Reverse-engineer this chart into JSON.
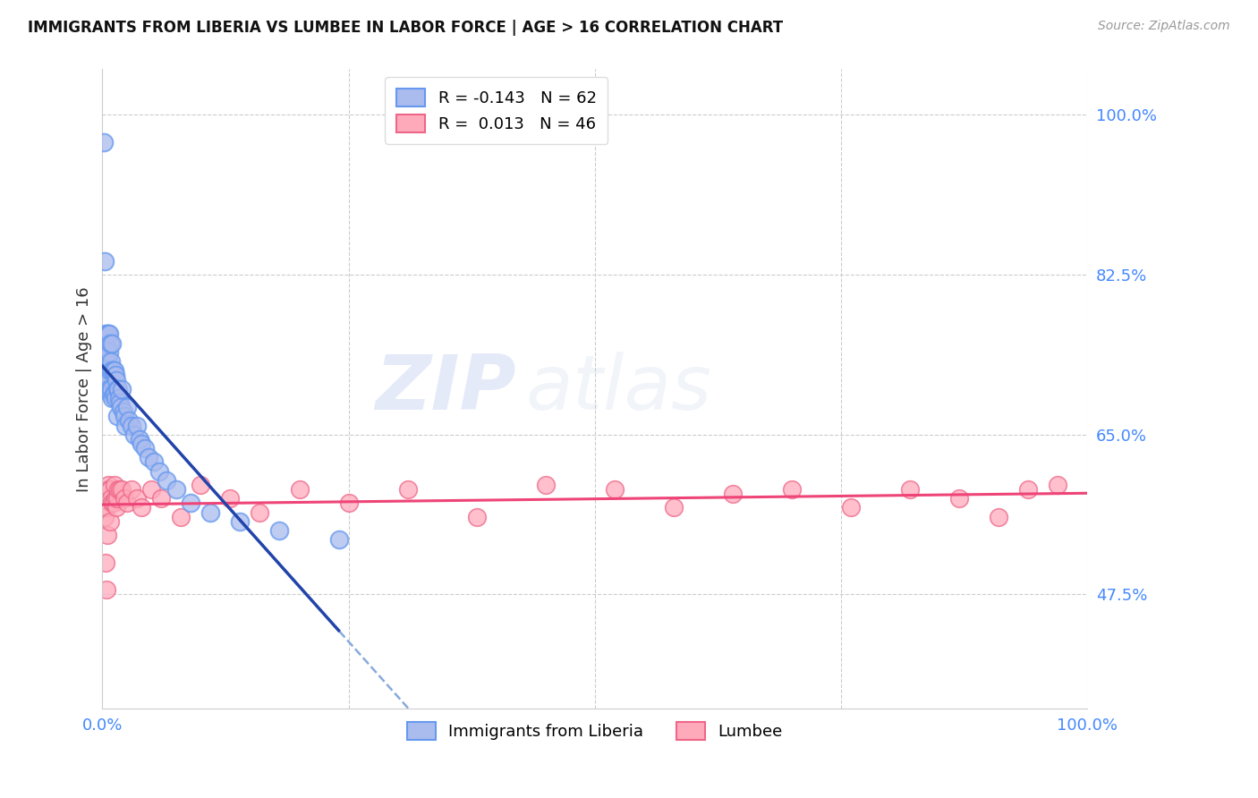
{
  "title": "IMMIGRANTS FROM LIBERIA VS LUMBEE IN LABOR FORCE | AGE > 16 CORRELATION CHART",
  "source": "Source: ZipAtlas.com",
  "ylabel": "In Labor Force | Age > 16",
  "ytick_labels": [
    "100.0%",
    "82.5%",
    "65.0%",
    "47.5%"
  ],
  "ytick_values": [
    1.0,
    0.825,
    0.65,
    0.475
  ],
  "xlim": [
    0.0,
    1.0
  ],
  "ylim": [
    0.35,
    1.05
  ],
  "liberia_color": "#6699ee",
  "liberia_fill": "#aabbee",
  "lumbee_color": "#ee6688",
  "lumbee_fill": "#ffaabb",
  "trend_liberia_solid_color": "#2244aa",
  "trend_liberia_dash_color": "#88aadd",
  "trend_lumbee_color": "#ee4477",
  "liberia_R": -0.143,
  "liberia_N": 62,
  "lumbee_R": 0.013,
  "lumbee_N": 46,
  "legend_label_1": "Immigrants from Liberia",
  "legend_label_2": "Lumbee",
  "watermark_zip": "ZIP",
  "watermark_atlas": "atlas",
  "liberia_x": [
    0.001,
    0.002,
    0.002,
    0.003,
    0.003,
    0.003,
    0.004,
    0.004,
    0.004,
    0.005,
    0.005,
    0.005,
    0.005,
    0.006,
    0.006,
    0.006,
    0.007,
    0.007,
    0.007,
    0.008,
    0.008,
    0.008,
    0.009,
    0.009,
    0.01,
    0.01,
    0.01,
    0.011,
    0.011,
    0.012,
    0.012,
    0.013,
    0.013,
    0.014,
    0.015,
    0.015,
    0.016,
    0.017,
    0.018,
    0.019,
    0.02,
    0.021,
    0.022,
    0.023,
    0.025,
    0.027,
    0.03,
    0.032,
    0.035,
    0.038,
    0.04,
    0.043,
    0.047,
    0.052,
    0.058,
    0.065,
    0.075,
    0.09,
    0.11,
    0.14,
    0.18,
    0.24
  ],
  "liberia_y": [
    0.97,
    0.84,
    0.73,
    0.76,
    0.75,
    0.72,
    0.74,
    0.71,
    0.7,
    0.76,
    0.745,
    0.72,
    0.7,
    0.76,
    0.73,
    0.71,
    0.76,
    0.74,
    0.7,
    0.75,
    0.72,
    0.695,
    0.73,
    0.7,
    0.75,
    0.72,
    0.69,
    0.72,
    0.695,
    0.72,
    0.695,
    0.715,
    0.69,
    0.71,
    0.7,
    0.67,
    0.7,
    0.69,
    0.685,
    0.68,
    0.7,
    0.675,
    0.67,
    0.66,
    0.68,
    0.665,
    0.66,
    0.65,
    0.66,
    0.645,
    0.64,
    0.635,
    0.625,
    0.62,
    0.61,
    0.6,
    0.59,
    0.575,
    0.565,
    0.555,
    0.545,
    0.535
  ],
  "lumbee_x": [
    0.002,
    0.003,
    0.004,
    0.004,
    0.005,
    0.005,
    0.006,
    0.007,
    0.008,
    0.008,
    0.009,
    0.01,
    0.011,
    0.012,
    0.013,
    0.014,
    0.015,
    0.016,
    0.018,
    0.02,
    0.022,
    0.025,
    0.03,
    0.035,
    0.04,
    0.05,
    0.06,
    0.08,
    0.1,
    0.13,
    0.16,
    0.2,
    0.25,
    0.31,
    0.38,
    0.45,
    0.52,
    0.58,
    0.64,
    0.7,
    0.76,
    0.82,
    0.87,
    0.91,
    0.94,
    0.97
  ],
  "lumbee_y": [
    0.56,
    0.51,
    0.48,
    0.57,
    0.59,
    0.54,
    0.595,
    0.59,
    0.59,
    0.555,
    0.58,
    0.575,
    0.575,
    0.595,
    0.58,
    0.57,
    0.58,
    0.59,
    0.59,
    0.59,
    0.58,
    0.575,
    0.59,
    0.58,
    0.57,
    0.59,
    0.58,
    0.56,
    0.595,
    0.58,
    0.565,
    0.59,
    0.575,
    0.59,
    0.56,
    0.595,
    0.59,
    0.57,
    0.585,
    0.59,
    0.57,
    0.59,
    0.58,
    0.56,
    0.59,
    0.595
  ]
}
